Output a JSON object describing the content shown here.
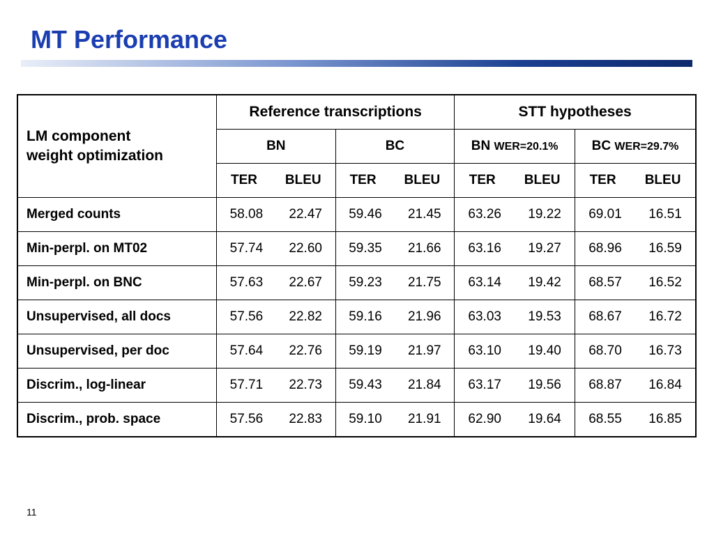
{
  "slide": {
    "title": "MT Performance",
    "page_number": "11"
  },
  "table": {
    "corner_line1": "LM component",
    "corner_line2": "weight optimization",
    "groups": [
      {
        "label": "Reference transcriptions"
      },
      {
        "label": "STT hypotheses"
      }
    ],
    "subgroups": [
      {
        "label": "BN",
        "wer": ""
      },
      {
        "label": "BC",
        "wer": ""
      },
      {
        "label": "BN",
        "wer": "WER=20.1%"
      },
      {
        "label": "BC",
        "wer": "WER=29.7%"
      }
    ],
    "metric_ter": "TER",
    "metric_bleu": "BLEU",
    "rows": [
      {
        "label": "Merged counts",
        "values": [
          "58.08",
          "22.47",
          "59.46",
          "21.45",
          "63.26",
          "19.22",
          "69.01",
          "16.51"
        ]
      },
      {
        "label": "Min-perpl. on MT02",
        "values": [
          "57.74",
          "22.60",
          "59.35",
          "21.66",
          "63.16",
          "19.27",
          "68.96",
          "16.59"
        ]
      },
      {
        "label": "Min-perpl. on BNC",
        "values": [
          "57.63",
          "22.67",
          "59.23",
          "21.75",
          "63.14",
          "19.42",
          "68.57",
          "16.52"
        ]
      },
      {
        "label": "Unsupervised, all docs",
        "values": [
          "57.56",
          "22.82",
          "59.16",
          "21.96",
          "63.03",
          "19.53",
          "68.67",
          "16.72"
        ]
      },
      {
        "label": "Unsupervised, per doc",
        "values": [
          "57.64",
          "22.76",
          "59.19",
          "21.97",
          "63.10",
          "19.40",
          "68.70",
          "16.73"
        ]
      },
      {
        "label": "Discrim., log-linear",
        "values": [
          "57.71",
          "22.73",
          "59.43",
          "21.84",
          "63.17",
          "19.56",
          "68.87",
          "16.84"
        ]
      },
      {
        "label": "Discrim., prob. space",
        "values": [
          "57.56",
          "22.83",
          "59.10",
          "21.91",
          "62.90",
          "19.64",
          "68.55",
          "16.85"
        ]
      }
    ]
  }
}
